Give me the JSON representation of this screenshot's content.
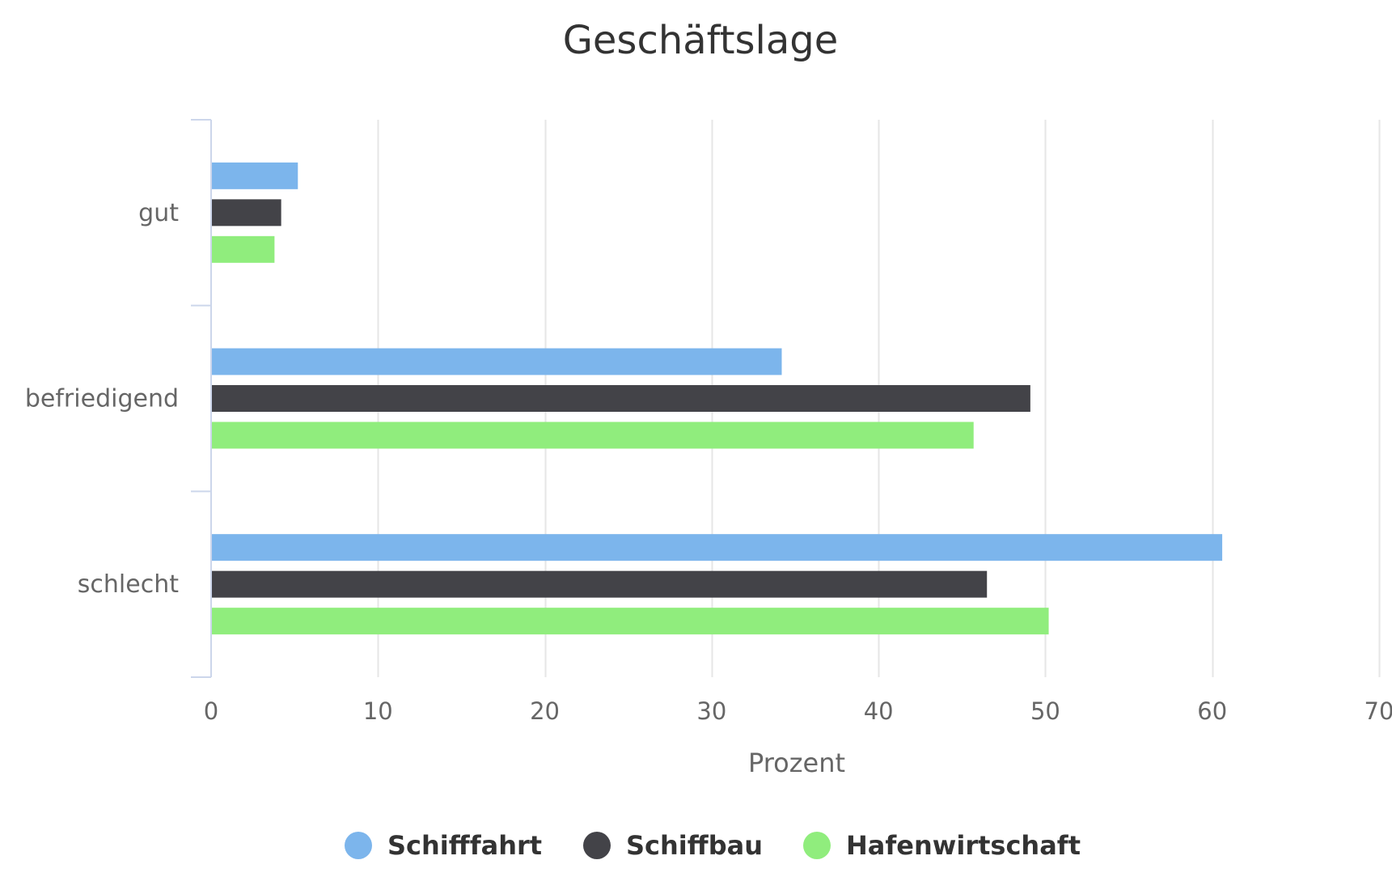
{
  "chart_data": {
    "type": "bar",
    "orientation": "horizontal",
    "title": "Geschäftslage",
    "xlabel": "Prozent",
    "ylabel": "",
    "categories": [
      "gut",
      "befriedigend",
      "schlecht"
    ],
    "xlim": [
      0,
      70
    ],
    "xticks": [
      0,
      10,
      20,
      30,
      40,
      50,
      60,
      70
    ],
    "grid": true,
    "legend_position": "bottom",
    "series": [
      {
        "name": "Schifffahrt",
        "color": "#7cb5ec",
        "values": [
          5.2,
          34.2,
          60.6
        ]
      },
      {
        "name": "Schiffbau",
        "color": "#434348",
        "values": [
          4.2,
          49.1,
          46.5
        ]
      },
      {
        "name": "Hafenwirtschaft",
        "color": "#90ed7d",
        "values": [
          3.8,
          45.7,
          50.2
        ]
      }
    ]
  }
}
